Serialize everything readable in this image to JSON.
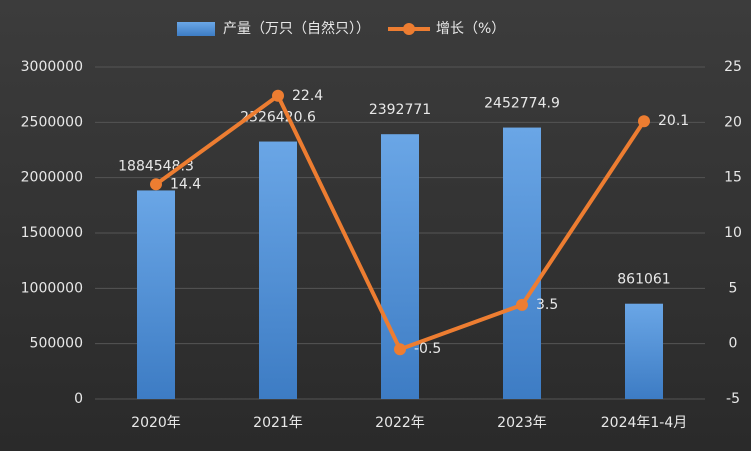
{
  "chart_data": {
    "type": "bar",
    "categories": [
      "2020年",
      "2021年",
      "2022年",
      "2023年",
      "2024年1-4月"
    ],
    "series": [
      {
        "name": "产量（万只（自然只））",
        "type": "bar",
        "color": "#4f8fd6",
        "values": [
          1884548.3,
          2326420.6,
          2392771,
          2452774.9,
          861061
        ]
      },
      {
        "name": "增长（%）",
        "type": "line",
        "axis": "y2",
        "color": "#ed7d31",
        "values": [
          14.4,
          22.4,
          -0.5,
          3.5,
          20.1
        ]
      }
    ],
    "ylim": [
      0,
      3000000
    ],
    "yticks": [
      0,
      500000,
      1000000,
      1500000,
      2000000,
      2500000,
      3000000
    ],
    "y2lim": [
      -5,
      25
    ],
    "y2ticks": [
      -5,
      0,
      5,
      10,
      15,
      20,
      25
    ],
    "grid": true
  }
}
